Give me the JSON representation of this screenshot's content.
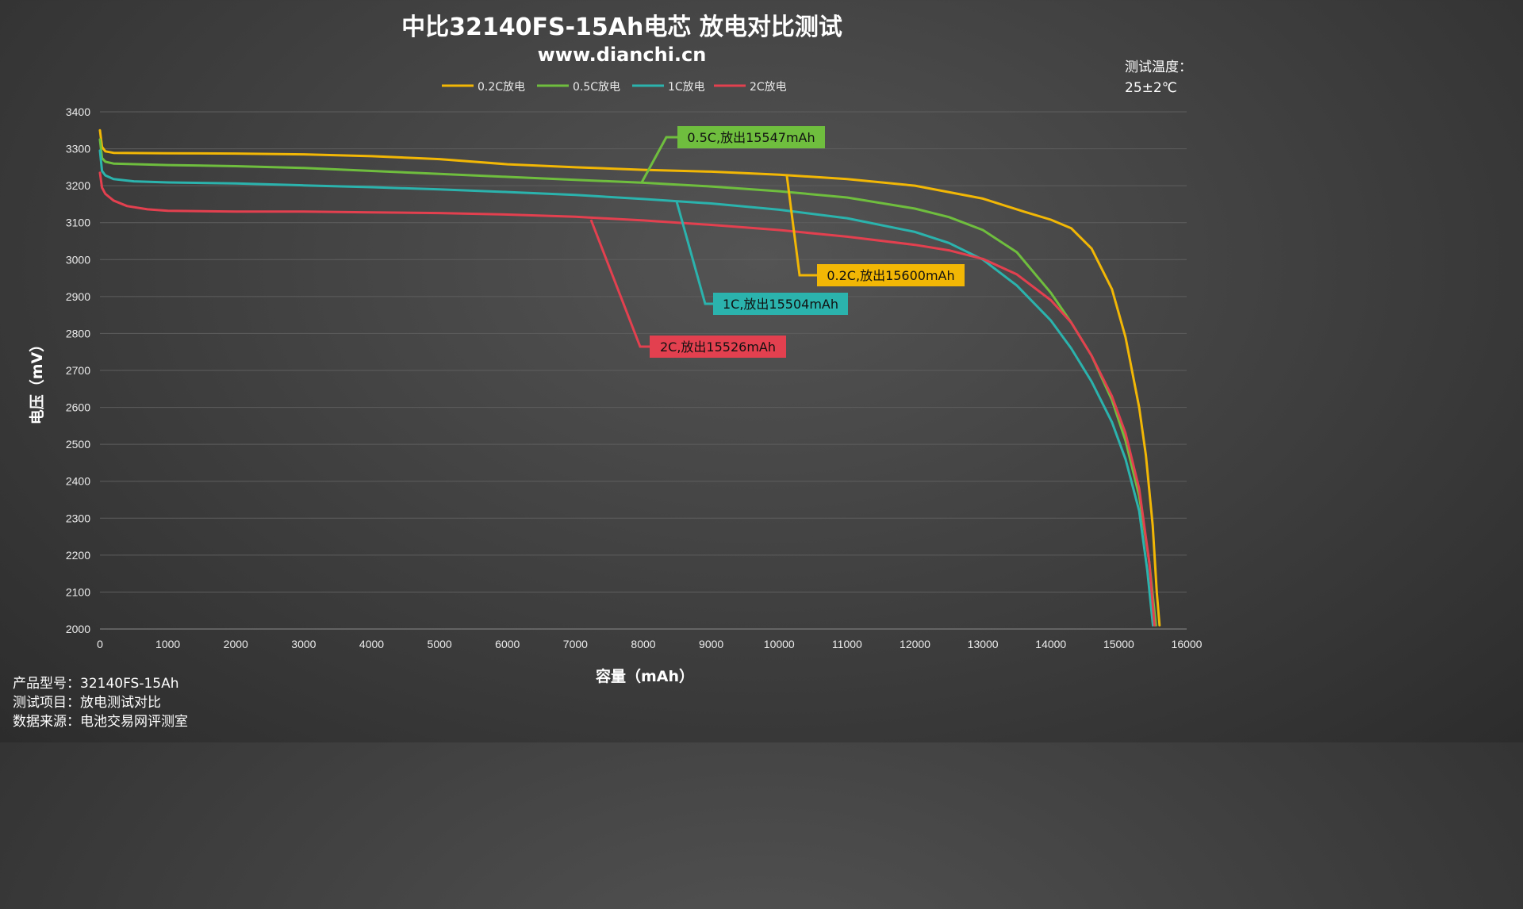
{
  "header": {
    "title": "中比32140FS-15Ah电芯 放电对比测试",
    "subtitle": "www.dianchi.cn"
  },
  "test_temperature": {
    "label": "测试温度：",
    "value": "25±2℃"
  },
  "info": [
    "产品型号：32140FS-15Ah",
    "测试项目：放电测试对比",
    "数据来源：电池交易网评测室"
  ],
  "colors": {
    "c02": "#f2b705",
    "c05": "#6fbe3e",
    "c1": "#2bb3ad",
    "c2": "#e3404f",
    "grid": "#5e5e5e"
  },
  "chart_data": {
    "type": "line",
    "title": "中比32140FS-15Ah电芯 放电对比测试",
    "xlabel": "容量（mAh）",
    "ylabel": "电压（mV）",
    "xlim": [
      0,
      16000
    ],
    "ylim": [
      2000,
      3400
    ],
    "x_ticks": [
      "0",
      "1000",
      "2000",
      "3000",
      "4000",
      "5000",
      "6000",
      "7000",
      "8000",
      "9000",
      "10000",
      "11000",
      "12000",
      "13000",
      "14000",
      "15000",
      "16000"
    ],
    "y_ticks": [
      "2000",
      "2100",
      "2200",
      "2300",
      "2400",
      "2500",
      "2600",
      "2700",
      "2800",
      "2900",
      "3000",
      "3100",
      "3200",
      "3300",
      "3400"
    ],
    "grid": true,
    "legend_position": "top-center",
    "series": [
      {
        "name": "0.2C放电",
        "color_key": "c02",
        "annotation": "0.2C,放出15600mAh",
        "points": [
          [
            0,
            3350
          ],
          [
            30,
            3305
          ],
          [
            80,
            3293
          ],
          [
            200,
            3289
          ],
          [
            1000,
            3288
          ],
          [
            2000,
            3287
          ],
          [
            3000,
            3285
          ],
          [
            4000,
            3280
          ],
          [
            5000,
            3272
          ],
          [
            6000,
            3258
          ],
          [
            7000,
            3250
          ],
          [
            8000,
            3243
          ],
          [
            9000,
            3238
          ],
          [
            10000,
            3230
          ],
          [
            11000,
            3218
          ],
          [
            12000,
            3200
          ],
          [
            13000,
            3165
          ],
          [
            13600,
            3130
          ],
          [
            14000,
            3108
          ],
          [
            14300,
            3085
          ],
          [
            14600,
            3030
          ],
          [
            14900,
            2920
          ],
          [
            15100,
            2790
          ],
          [
            15300,
            2600
          ],
          [
            15400,
            2470
          ],
          [
            15500,
            2280
          ],
          [
            15560,
            2100
          ],
          [
            15600,
            2010
          ]
        ]
      },
      {
        "name": "0.5C放电",
        "color_key": "c05",
        "annotation": "0.5C,放出15547mAh",
        "points": [
          [
            0,
            3325
          ],
          [
            30,
            3275
          ],
          [
            80,
            3265
          ],
          [
            200,
            3260
          ],
          [
            1000,
            3256
          ],
          [
            2000,
            3253
          ],
          [
            3000,
            3248
          ],
          [
            4000,
            3240
          ],
          [
            5000,
            3232
          ],
          [
            6000,
            3224
          ],
          [
            7000,
            3216
          ],
          [
            8000,
            3208
          ],
          [
            9000,
            3198
          ],
          [
            10000,
            3185
          ],
          [
            11000,
            3168
          ],
          [
            12000,
            3138
          ],
          [
            12500,
            3115
          ],
          [
            13000,
            3080
          ],
          [
            13500,
            3020
          ],
          [
            14000,
            2910
          ],
          [
            14300,
            2830
          ],
          [
            14600,
            2740
          ],
          [
            14900,
            2620
          ],
          [
            15100,
            2510
          ],
          [
            15300,
            2360
          ],
          [
            15450,
            2180
          ],
          [
            15547,
            2010
          ]
        ]
      },
      {
        "name": "1C放电",
        "color_key": "c1",
        "annotation": "1C,放出15504mAh",
        "points": [
          [
            0,
            3295
          ],
          [
            30,
            3240
          ],
          [
            80,
            3228
          ],
          [
            200,
            3218
          ],
          [
            500,
            3212
          ],
          [
            1000,
            3209
          ],
          [
            2000,
            3206
          ],
          [
            3000,
            3201
          ],
          [
            4000,
            3196
          ],
          [
            5000,
            3190
          ],
          [
            6000,
            3183
          ],
          [
            7000,
            3175
          ],
          [
            8000,
            3164
          ],
          [
            9000,
            3152
          ],
          [
            10000,
            3135
          ],
          [
            11000,
            3112
          ],
          [
            12000,
            3075
          ],
          [
            12500,
            3045
          ],
          [
            13000,
            3000
          ],
          [
            13500,
            2930
          ],
          [
            14000,
            2835
          ],
          [
            14300,
            2760
          ],
          [
            14600,
            2670
          ],
          [
            14900,
            2560
          ],
          [
            15100,
            2460
          ],
          [
            15300,
            2320
          ],
          [
            15420,
            2160
          ],
          [
            15504,
            2010
          ]
        ]
      },
      {
        "name": "2C放电",
        "color_key": "c2",
        "annotation": "2C,放出15526mAh",
        "points": [
          [
            0,
            3235
          ],
          [
            30,
            3195
          ],
          [
            80,
            3178
          ],
          [
            200,
            3160
          ],
          [
            400,
            3145
          ],
          [
            700,
            3136
          ],
          [
            1000,
            3132
          ],
          [
            2000,
            3130
          ],
          [
            3000,
            3130
          ],
          [
            4000,
            3128
          ],
          [
            5000,
            3126
          ],
          [
            6000,
            3122
          ],
          [
            7000,
            3116
          ],
          [
            8000,
            3106
          ],
          [
            9000,
            3094
          ],
          [
            10000,
            3080
          ],
          [
            11000,
            3062
          ],
          [
            12000,
            3040
          ],
          [
            12500,
            3025
          ],
          [
            13000,
            3002
          ],
          [
            13500,
            2960
          ],
          [
            14000,
            2890
          ],
          [
            14300,
            2830
          ],
          [
            14600,
            2740
          ],
          [
            14900,
            2630
          ],
          [
            15100,
            2530
          ],
          [
            15300,
            2380
          ],
          [
            15450,
            2180
          ],
          [
            15526,
            2010
          ]
        ]
      }
    ],
    "legend": [
      "0.2C放电",
      "0.5C放电",
      "1C放电",
      "2C放电"
    ]
  }
}
